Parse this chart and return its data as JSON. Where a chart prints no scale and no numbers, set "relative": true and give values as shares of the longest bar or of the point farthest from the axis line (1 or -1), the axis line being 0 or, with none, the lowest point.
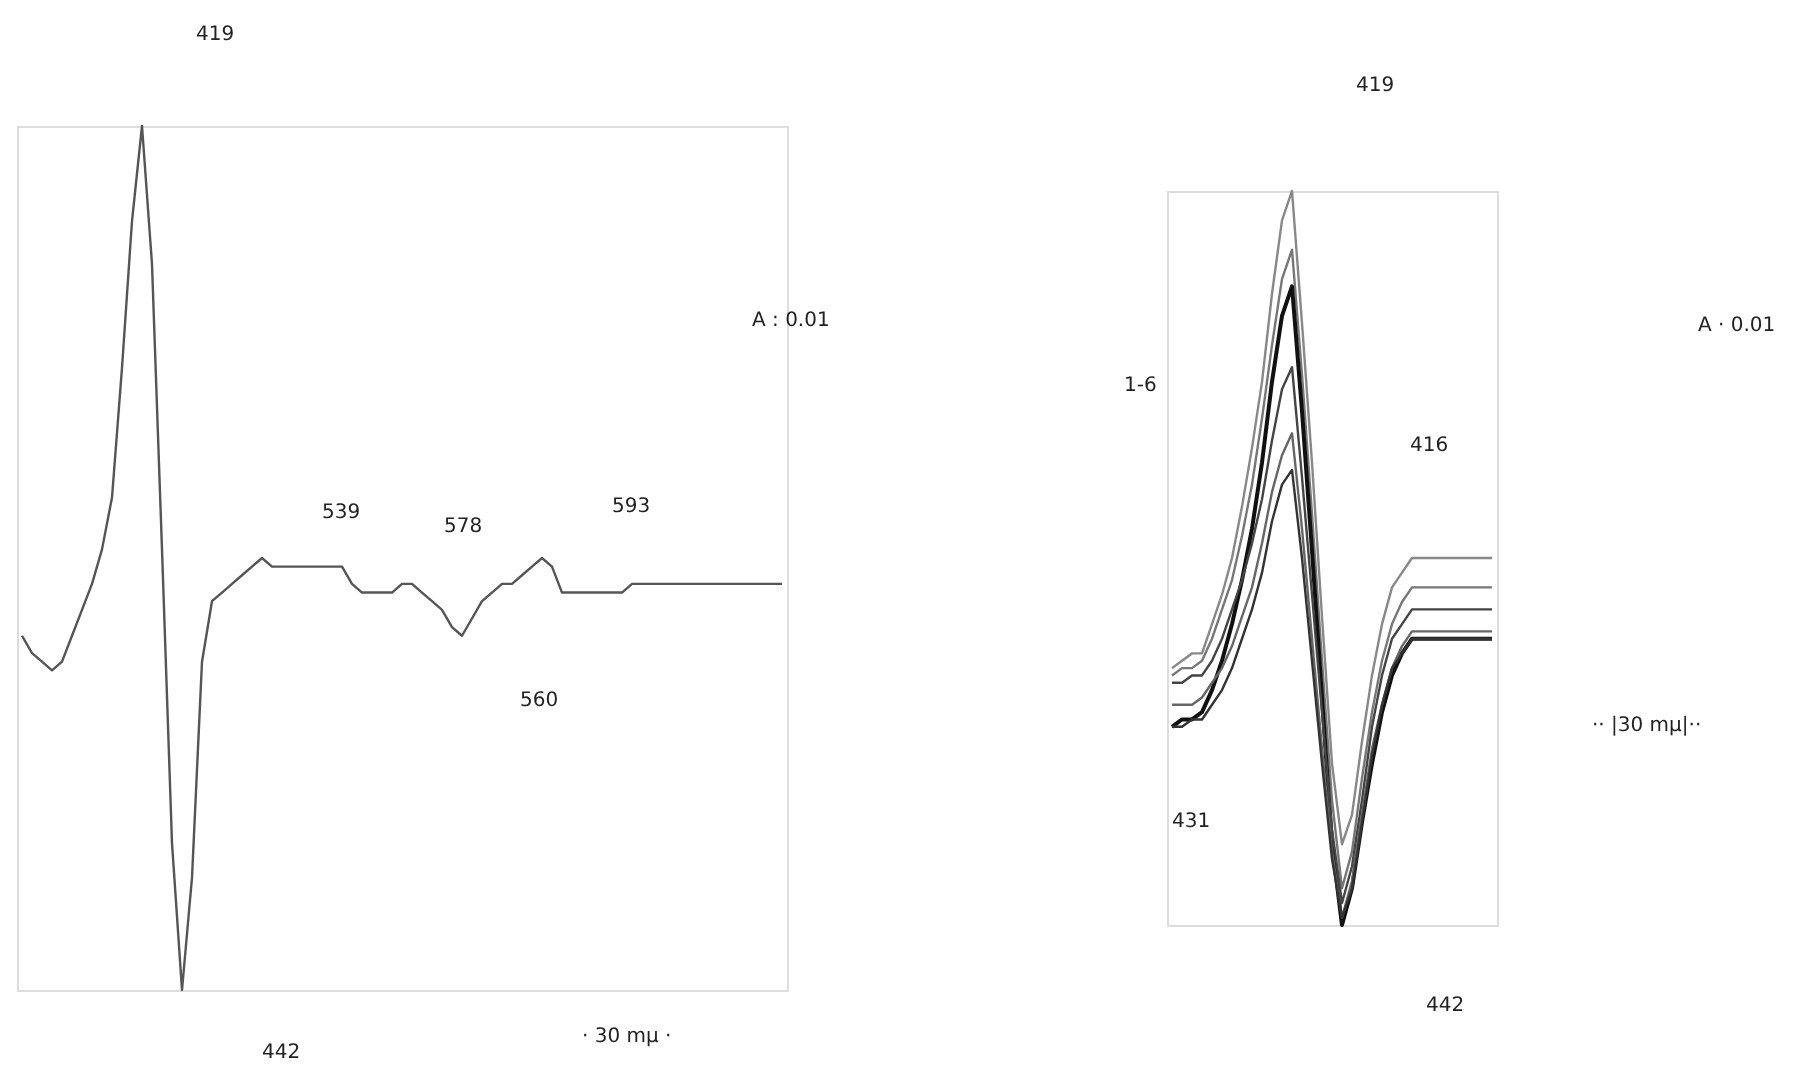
{
  "chart_data": [
    {
      "type": "line",
      "relative": true,
      "categories": [
        null,
        null,
        null,
        null,
        null,
        null,
        null,
        null,
        null,
        null,
        null,
        null,
        null,
        null,
        null,
        null,
        null,
        null,
        null,
        null,
        null,
        null,
        null,
        null,
        null,
        null,
        null,
        null,
        null,
        null,
        null,
        null,
        null,
        null,
        null,
        null,
        null,
        null,
        null,
        null,
        null,
        null,
        null,
        null,
        null,
        null,
        null,
        null,
        null,
        null,
        null,
        null,
        null,
        null,
        null,
        null,
        null,
        null,
        null,
        null,
        null,
        null,
        null,
        null,
        null,
        null,
        null,
        null,
        null,
        null,
        null,
        null,
        null,
        null,
        null,
        null,
        null
      ],
      "series": [
        {
          "color": "#555555",
          "values": [
            0.41,
            0.39,
            0.38,
            0.37,
            0.38,
            0.41,
            0.44,
            0.47,
            0.51,
            0.57,
            0.72,
            0.89,
            1,
            0.84,
            0.51,
            0.17,
            0,
            0.13,
            0.38,
            0.45,
            0.46,
            0.47,
            0.48,
            0.49,
            0.5,
            0.49,
            0.49,
            0.49,
            0.49,
            0.49,
            0.49,
            0.49,
            0.49,
            0.47,
            0.46,
            0.46,
            0.46,
            0.46,
            0.47,
            0.47,
            0.46,
            0.45,
            0.44,
            0.42,
            0.41,
            0.43,
            0.45,
            0.46,
            0.47,
            0.47,
            0.48,
            0.49,
            0.5,
            0.49,
            0.46,
            0.46,
            0.46,
            0.46,
            0.46,
            0.46,
            0.46,
            0.47,
            0.47,
            0.47,
            0.47,
            0.47,
            0.47,
            0.47,
            0.47,
            0.47,
            0.47,
            0.47,
            0.47,
            0.47,
            0.47,
            0.47,
            0.47
          ]
        }
      ],
      "annotations": [
        "419",
        "A : 0.01",
        "539",
        "578",
        "593",
        "560",
        "· 30 mμ ·",
        "442"
      ]
    },
    {
      "type": "line",
      "relative": true,
      "categories": [
        null,
        null,
        null,
        null,
        null,
        null,
        null,
        null,
        null,
        null,
        null,
        null,
        null,
        null,
        null,
        null,
        null,
        null,
        null,
        null,
        null,
        null,
        null,
        null,
        null,
        null,
        null,
        null,
        null,
        null,
        null,
        null,
        null
      ],
      "series": [
        {
          "color": "#888888",
          "values": [
            0.35,
            0.36,
            0.37,
            0.37,
            0.41,
            0.45,
            0.5,
            0.57,
            0.65,
            0.74,
            0.86,
            0.96,
            1,
            0.82,
            0.63,
            0.42,
            0.22,
            0.11,
            0.15,
            0.25,
            0.34,
            0.41,
            0.46,
            0.48,
            0.5,
            0.5,
            0.5,
            0.5,
            0.5,
            0.5,
            0.5,
            0.5,
            0.5
          ]
        },
        {
          "color": "#777777",
          "values": [
            0.34,
            0.35,
            0.35,
            0.36,
            0.39,
            0.43,
            0.47,
            0.53,
            0.6,
            0.69,
            0.79,
            0.88,
            0.92,
            0.75,
            0.56,
            0.36,
            0.17,
            0.05,
            0.1,
            0.2,
            0.29,
            0.36,
            0.41,
            0.44,
            0.46,
            0.46,
            0.46,
            0.46,
            0.46,
            0.46,
            0.46,
            0.46,
            0.46
          ]
        },
        {
          "color": "#111111",
          "values": [
            0.27,
            0.28,
            0.28,
            0.29,
            0.32,
            0.36,
            0.41,
            0.47,
            0.54,
            0.63,
            0.74,
            0.83,
            0.87,
            0.7,
            0.51,
            0.31,
            0.11,
            0,
            0.05,
            0.14,
            0.22,
            0.29,
            0.34,
            0.37,
            0.39,
            0.39,
            0.39,
            0.39,
            0.39,
            0.39,
            0.39,
            0.39,
            0.39
          ]
        },
        {
          "color": "#444444",
          "values": [
            0.33,
            0.33,
            0.34,
            0.34,
            0.36,
            0.39,
            0.43,
            0.47,
            0.52,
            0.58,
            0.66,
            0.73,
            0.76,
            0.61,
            0.45,
            0.29,
            0.13,
            0.03,
            0.08,
            0.17,
            0.27,
            0.34,
            0.39,
            0.41,
            0.43,
            0.43,
            0.43,
            0.43,
            0.43,
            0.43,
            0.43,
            0.43,
            0.43
          ]
        },
        {
          "color": "#666666",
          "values": [
            0.3,
            0.3,
            0.3,
            0.31,
            0.33,
            0.35,
            0.38,
            0.42,
            0.46,
            0.52,
            0.59,
            0.64,
            0.67,
            0.54,
            0.39,
            0.24,
            0.1,
            0.01,
            0.06,
            0.15,
            0.24,
            0.3,
            0.35,
            0.38,
            0.4,
            0.4,
            0.4,
            0.4,
            0.4,
            0.4,
            0.4,
            0.4,
            0.4
          ]
        },
        {
          "color": "#333333",
          "values": [
            0.27,
            0.27,
            0.28,
            0.28,
            0.3,
            0.32,
            0.35,
            0.39,
            0.43,
            0.48,
            0.55,
            0.6,
            0.62,
            0.5,
            0.36,
            0.22,
            0.09,
            0.01,
            0.05,
            0.14,
            0.23,
            0.3,
            0.35,
            0.37,
            0.39,
            0.39,
            0.39,
            0.39,
            0.39,
            0.39,
            0.39,
            0.39,
            0.39
          ]
        }
      ],
      "annotations": [
        "419",
        "A · 0.01",
        "1-6",
        "416",
        "431",
        "442",
        "·· |30 mμ|··"
      ]
    }
  ]
}
